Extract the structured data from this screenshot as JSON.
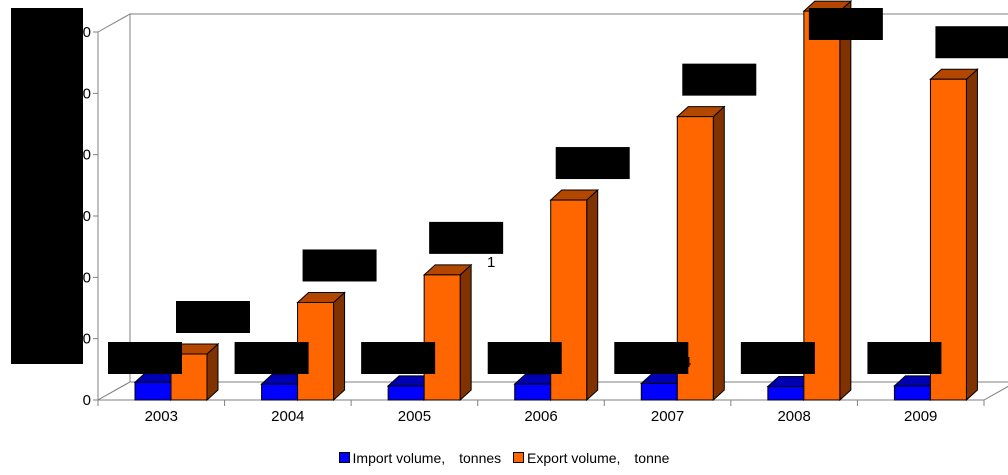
{
  "chart_data": {
    "type": "bar",
    "categories": [
      "2003",
      "2004",
      "2005",
      "2006",
      "2007",
      "2008",
      "2009"
    ],
    "series": [
      {
        "name": "Import volume,　tonnes",
        "color": "#0000ff",
        "values": [
          2.9,
          2.6,
          2.3,
          2.6,
          2.7,
          2.2,
          2.3
        ]
      },
      {
        "name": "Export volume,　tonne",
        "color": "#ff6600",
        "values": [
          7.5,
          15.9,
          20.4,
          32.6,
          46.2,
          63.4,
          52.3
        ]
      }
    ],
    "ytick_labels": [
      "0",
      "10",
      "20",
      "30",
      "40",
      "50",
      "60"
    ],
    "visible_label_fragments": [
      "4",
      "1",
      "4",
      "4"
    ],
    "ylim": [
      0,
      60
    ],
    "grid": false,
    "legend_position": "bottom",
    "redaction_color": "#000000"
  }
}
